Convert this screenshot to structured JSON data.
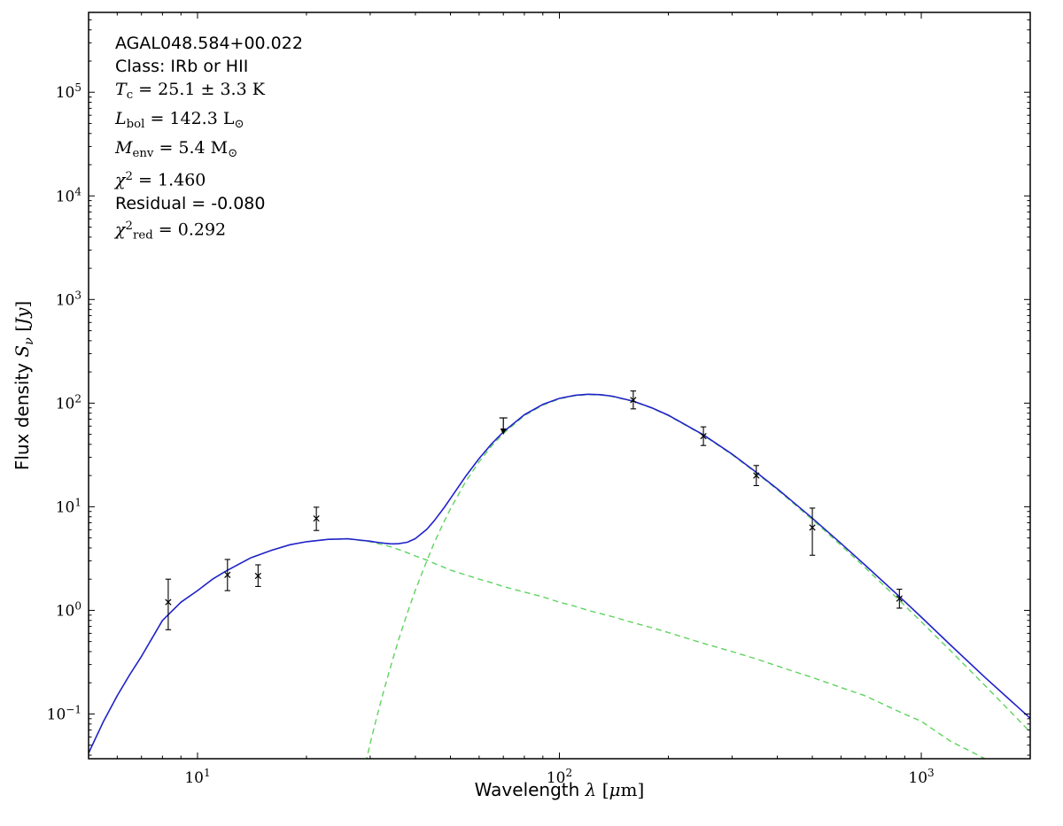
{
  "figure": {
    "background": "#ffffff",
    "colors": {
      "axis": "#000000",
      "total_fit": "#2222cc",
      "components": "#5fd35f",
      "data": "#000000"
    }
  },
  "annotation": {
    "lines": [
      {
        "name": "source-name",
        "font": "sans",
        "parts": [
          {
            "t": "AGAL048.584+00.022"
          }
        ]
      },
      {
        "name": "class",
        "font": "sans",
        "parts": [
          {
            "t": "Class: IRb or HII"
          }
        ]
      },
      {
        "name": "dust-temperature",
        "font": "serif",
        "parts": [
          {
            "t": "T",
            "it": 1
          },
          {
            "t": "c",
            "sub": 1
          },
          {
            "t": " = 25.1 ± 3.3 K"
          }
        ]
      },
      {
        "name": "bolometric-luminosity",
        "font": "serif",
        "parts": [
          {
            "t": "L",
            "it": 1
          },
          {
            "t": "bol",
            "sub": 1
          },
          {
            "t": " = 142.3 L"
          },
          {
            "t": "⊙",
            "sub": 1
          }
        ]
      },
      {
        "name": "envelope-mass",
        "font": "serif",
        "parts": [
          {
            "t": "M",
            "it": 1
          },
          {
            "t": "env",
            "sub": 1
          },
          {
            "t": " = 5.4 M"
          },
          {
            "t": "⊙",
            "sub": 1
          }
        ]
      },
      {
        "name": "chi-squared",
        "font": "serif",
        "parts": [
          {
            "t": "χ",
            "it": 1
          },
          {
            "t": "2",
            "sup": 1
          },
          {
            "t": " = 1.460"
          }
        ]
      },
      {
        "name": "residual",
        "font": "sans",
        "parts": [
          {
            "t": "Residual = -0.080"
          }
        ]
      },
      {
        "name": "reduced-chi-squared",
        "font": "serif",
        "parts": [
          {
            "t": "χ",
            "it": 1
          },
          {
            "t": "2",
            "sup": 1
          },
          {
            "t": "red",
            "sub": 1
          },
          {
            "t": " = 0.292"
          }
        ]
      }
    ]
  },
  "chart_data": {
    "type": "line",
    "xscale": "log",
    "yscale": "log",
    "xlim": [
      5,
      2000
    ],
    "ylim": [
      0.037,
      590000
    ],
    "grid": false,
    "legend": "none",
    "xlabel_parts": [
      {
        "t": "Wavelength ",
        "sans": 1
      },
      {
        "t": "λ",
        "it": 1
      },
      {
        "t": " ["
      },
      {
        "t": "μ",
        "it": 1
      },
      {
        "t": "m]"
      }
    ],
    "ylabel_parts": [
      {
        "t": "Flux density ",
        "sans": 1
      },
      {
        "t": "S",
        "it": 1
      },
      {
        "t": "ν",
        "it": 1,
        "sub": 1
      },
      {
        "t": " ["
      },
      {
        "t": "Jy",
        "it": 1
      },
      {
        "t": "]"
      }
    ],
    "x_major_ticks": [
      {
        "value": 10,
        "base": "10",
        "exp": "1"
      },
      {
        "value": 100,
        "base": "10",
        "exp": "2"
      },
      {
        "value": 1000,
        "base": "10",
        "exp": "3"
      }
    ],
    "y_major_ticks": [
      {
        "value": 0.1,
        "base": "10",
        "exp": "−1"
      },
      {
        "value": 1,
        "base": "10",
        "exp": "0"
      },
      {
        "value": 10,
        "base": "10",
        "exp": "1"
      },
      {
        "value": 100,
        "base": "10",
        "exp": "2"
      },
      {
        "value": 1000,
        "base": "10",
        "exp": "3"
      },
      {
        "value": 10000,
        "base": "10",
        "exp": "4"
      },
      {
        "value": 100000,
        "base": "10",
        "exp": "5"
      }
    ],
    "series": [
      {
        "name": "warm-component",
        "role": "component",
        "dash": "dashed",
        "x": [
          5,
          5.5,
          6,
          6.5,
          7,
          8,
          9,
          10,
          11,
          12,
          14,
          16,
          18,
          20,
          23,
          26,
          30,
          33,
          35,
          38,
          40,
          43,
          45,
          48,
          50,
          55,
          60,
          65,
          70,
          80,
          90,
          100,
          110,
          120,
          130,
          140,
          160,
          180,
          200,
          250,
          300,
          350,
          400,
          500,
          600,
          700,
          870,
          1000,
          1200,
          1500,
          2000
        ],
        "y": [
          0.042,
          0.085,
          0.15,
          0.24,
          0.36,
          0.8,
          1.2,
          1.55,
          2.0,
          2.4,
          3.2,
          3.8,
          4.3,
          4.6,
          4.85,
          4.9,
          4.6,
          4.25,
          4.0,
          3.6,
          3.35,
          3.05,
          2.85,
          2.6,
          2.45,
          2.2,
          2.0,
          1.85,
          1.7,
          1.5,
          1.35,
          1.2,
          1.1,
          1.0,
          0.93,
          0.87,
          0.76,
          0.68,
          0.61,
          0.48,
          0.4,
          0.34,
          0.29,
          0.225,
          0.18,
          0.15,
          0.105,
          0.085,
          0.055,
          0.037,
          0.024
        ]
      },
      {
        "name": "cold-component",
        "role": "component",
        "dash": "dashed",
        "x": [
          28,
          29,
          30,
          31,
          32,
          33,
          34,
          35,
          36,
          38,
          40,
          43,
          45,
          48,
          50,
          55,
          60,
          65,
          70,
          80,
          90,
          100,
          110,
          120,
          130,
          140,
          160,
          180,
          200,
          250,
          300,
          350,
          400,
          500,
          600,
          700,
          870,
          1000,
          1200,
          1500,
          2000
        ],
        "y": [
          0.018,
          0.031,
          0.052,
          0.082,
          0.126,
          0.187,
          0.27,
          0.381,
          0.528,
          0.942,
          1.57,
          3.0,
          4.41,
          7.19,
          9.55,
          17.3,
          27.2,
          38.7,
          51.0,
          75.7,
          95.7,
          109.9,
          117.7,
          120.8,
          119.7,
          115.8,
          103.7,
          89.5,
          75.9,
          48.9,
          31.8,
          21.2,
          14.6,
          7.53,
          4.25,
          2.58,
          1.25,
          0.776,
          0.413,
          0.188,
          0.067
        ]
      },
      {
        "name": "total-fit",
        "role": "total",
        "dash": "solid",
        "x": [
          5,
          5.5,
          6,
          6.5,
          7,
          8,
          9,
          10,
          11,
          12,
          14,
          16,
          18,
          20,
          23,
          26,
          28,
          30,
          31,
          32,
          33,
          34,
          35,
          36,
          38,
          40,
          43,
          45,
          48,
          50,
          55,
          60,
          65,
          70,
          80,
          90,
          100,
          110,
          120,
          130,
          140,
          160,
          180,
          200,
          250,
          300,
          350,
          400,
          500,
          600,
          700,
          870,
          1000,
          1200,
          1500,
          2000
        ],
        "y": [
          0.042,
          0.085,
          0.15,
          0.24,
          0.36,
          0.8,
          1.2,
          1.55,
          2.0,
          2.4,
          3.2,
          3.8,
          4.3,
          4.6,
          4.85,
          4.9,
          4.77,
          4.65,
          4.56,
          4.5,
          4.44,
          4.39,
          4.38,
          4.4,
          4.54,
          4.92,
          6.05,
          7.26,
          9.79,
          12.0,
          19.5,
          29.2,
          40.6,
          52.7,
          77.2,
          97.1,
          111.1,
          118.8,
          121.8,
          120.6,
          116.7,
          104.5,
          90.2,
          76.5,
          49.4,
          32.2,
          21.5,
          14.9,
          7.76,
          4.43,
          2.73,
          1.36,
          0.861,
          0.468,
          0.225,
          0.091
        ]
      }
    ],
    "photometry": [
      {
        "x": 8.3,
        "y": 1.2,
        "ylo": 0.65,
        "yhi": 2.0
      },
      {
        "x": 12.1,
        "y": 2.2,
        "ylo": 1.55,
        "yhi": 3.1
      },
      {
        "x": 14.7,
        "y": 2.15,
        "ylo": 1.7,
        "yhi": 2.75
      },
      {
        "x": 21.3,
        "y": 7.7,
        "ylo": 5.9,
        "yhi": 9.9
      },
      {
        "x": 160,
        "y": 107,
        "ylo": 88,
        "yhi": 131
      },
      {
        "x": 250,
        "y": 48,
        "ylo": 39,
        "yhi": 59
      },
      {
        "x": 350,
        "y": 20,
        "ylo": 16,
        "yhi": 25
      },
      {
        "x": 500,
        "y": 6.3,
        "ylo": 3.4,
        "yhi": 9.7
      },
      {
        "x": 870,
        "y": 1.3,
        "ylo": 1.05,
        "yhi": 1.6
      }
    ],
    "upper_limits": [
      {
        "x": 70,
        "y": 72
      }
    ]
  }
}
